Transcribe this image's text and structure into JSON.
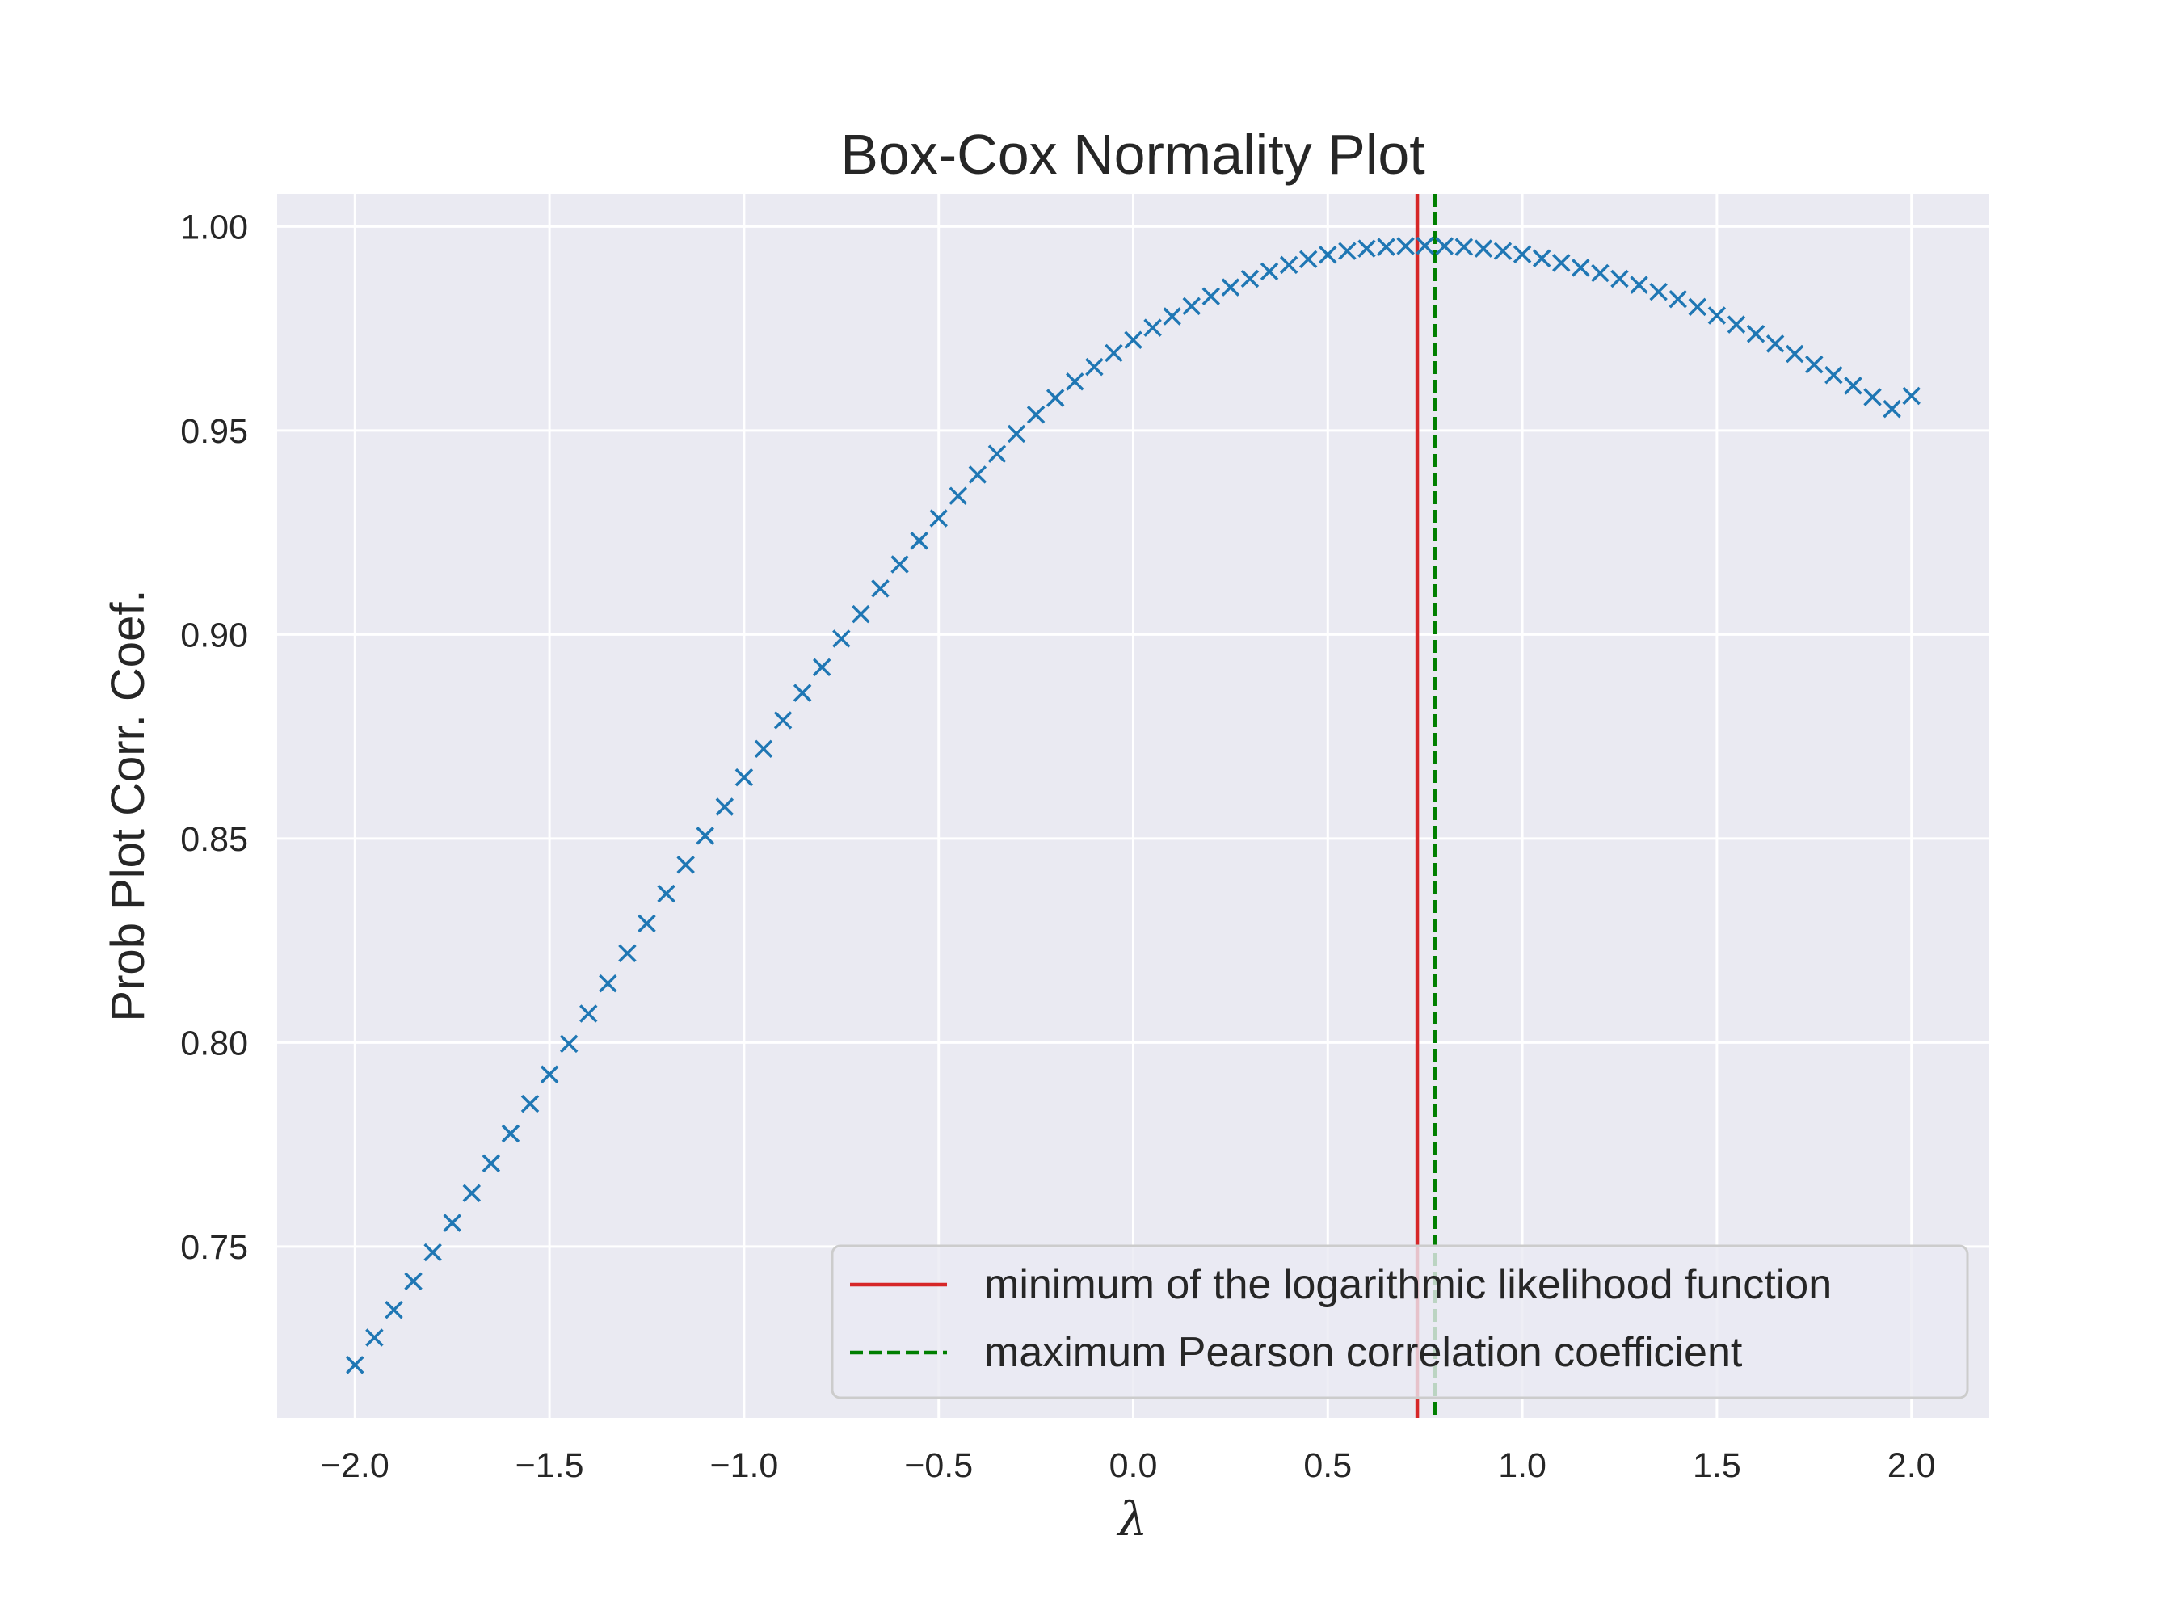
{
  "chart_data": {
    "type": "scatter",
    "title": "Box-Cox Normality Plot",
    "xlabel": "λ",
    "ylabel": "Prob Plot Corr. Coef.",
    "xlim": [
      -2.2,
      2.2
    ],
    "ylim": [
      0.708,
      1.008
    ],
    "grid": true,
    "legend_position": "bottom-right",
    "xticks": [
      -2.0,
      -1.5,
      -1.0,
      -0.5,
      0.0,
      0.5,
      1.0,
      1.5,
      2.0
    ],
    "xtick_labels": [
      "−2.0",
      "−1.5",
      "−1.0",
      "−0.5",
      "0.0",
      "0.5",
      "1.0",
      "1.5",
      "2.0"
    ],
    "yticks": [
      0.75,
      0.8,
      0.85,
      0.9,
      0.95,
      1.0
    ],
    "ytick_labels": [
      "0.75",
      "0.80",
      "0.85",
      "0.90",
      "0.95",
      "1.00"
    ],
    "colors": {
      "background": "#eaeaf2",
      "grid": "#ffffff",
      "marker": "#1f77b4",
      "min_llf_line": "#d62728",
      "max_corr_line": "#007f00"
    },
    "series": [
      {
        "marker": "x",
        "x": [
          -2.0,
          -1.95,
          -1.9,
          -1.85,
          -1.8,
          -1.75,
          -1.7,
          -1.65,
          -1.6,
          -1.55,
          -1.5,
          -1.45,
          -1.4,
          -1.35,
          -1.3,
          -1.25,
          -1.2,
          -1.15,
          -1.1,
          -1.05,
          -1.0,
          -0.95,
          -0.9,
          -0.85,
          -0.8,
          -0.75,
          -0.7,
          -0.65,
          -0.6,
          -0.55,
          -0.5,
          -0.45,
          -0.4,
          -0.35,
          -0.3,
          -0.25,
          -0.2,
          -0.15,
          -0.1,
          -0.05,
          0.0,
          0.05,
          0.1,
          0.15,
          0.2,
          0.25,
          0.3,
          0.35,
          0.4,
          0.45,
          0.5,
          0.55,
          0.6,
          0.65,
          0.7,
          0.75,
          0.8,
          0.85,
          0.9,
          0.95,
          1.0,
          1.05,
          1.1,
          1.15,
          1.2,
          1.25,
          1.3,
          1.35,
          1.4,
          1.45,
          1.5,
          1.55,
          1.6,
          1.65,
          1.7,
          1.75,
          1.8,
          1.85,
          1.9,
          1.95,
          2.0
        ],
        "y": [
          0.721,
          0.7277,
          0.7345,
          0.7415,
          0.7486,
          0.7558,
          0.7631,
          0.7704,
          0.7777,
          0.785,
          0.7922,
          0.7997,
          0.8071,
          0.8145,
          0.8219,
          0.8292,
          0.8365,
          0.8436,
          0.8507,
          0.8578,
          0.865,
          0.872,
          0.879,
          0.8857,
          0.892,
          0.899,
          0.905,
          0.9113,
          0.9172,
          0.923,
          0.9285,
          0.934,
          0.9392,
          0.9443,
          0.9492,
          0.9539,
          0.958,
          0.962,
          0.9656,
          0.969,
          0.9722,
          0.9752,
          0.978,
          0.9805,
          0.9829,
          0.9851,
          0.9872,
          0.989,
          0.9906,
          0.992,
          0.9931,
          0.994,
          0.9946,
          0.995,
          0.9952,
          0.9953,
          0.9952,
          0.995,
          0.9946,
          0.994,
          0.9932,
          0.9922,
          0.9911,
          0.9899,
          0.9886,
          0.9872,
          0.9857,
          0.984,
          0.9822,
          0.9803,
          0.9782,
          0.976,
          0.9737,
          0.9713,
          0.9688,
          0.9662,
          0.9636,
          0.961,
          0.9582,
          0.9553,
          0.9585
        ]
      }
    ],
    "vlines": [
      {
        "label": "minimum of the logarithmic likelihood function",
        "x": 0.73,
        "style": "solid",
        "color": "#d62728"
      },
      {
        "label": "maximum Pearson correlation coefficient",
        "x": 0.775,
        "style": "dashed",
        "color": "#007f00"
      }
    ]
  }
}
